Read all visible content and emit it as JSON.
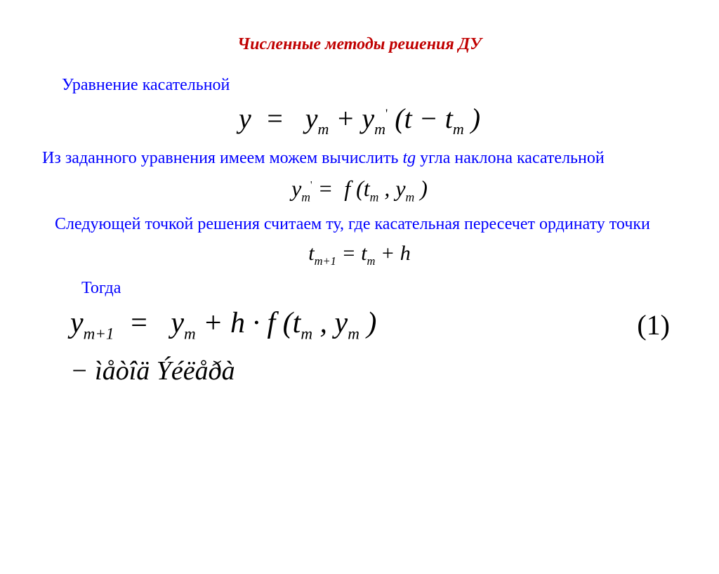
{
  "colors": {
    "title": "#c00000",
    "body": "#0000ff",
    "math": "#000000",
    "background": "#ffffff"
  },
  "typography": {
    "family": "Times New Roman",
    "title_size_pt": 24,
    "body_size_pt": 24,
    "eq_big_pt": 40,
    "eq_med_pt": 32,
    "eq_final_pt": 42
  },
  "title": "Численные методы решения ДУ",
  "p1": "Уравнение касательной",
  "eq1": "y  =   yₘ + yₘ' (t − tₘ )",
  "p2a": "Из заданного уравнения имеем можем вычислить ",
  "p2_tg": "tg",
  "p2b": " угла наклона касательной",
  "eq2": "yₘ' =  f (tₘ , yₘ )",
  "p3": "Следующей точкой решения считаем ту, где касательная пересечет ординату точки",
  "eq3": "tₘ₊₁ = tₘ + h",
  "p4": "Тогда",
  "eq4": "yₘ₊₁  =   yₘ + h · f (tₘ , yₘ )",
  "eq4_num": "(1)",
  "garbled": "− ìåòîä      Ýéëåðà"
}
